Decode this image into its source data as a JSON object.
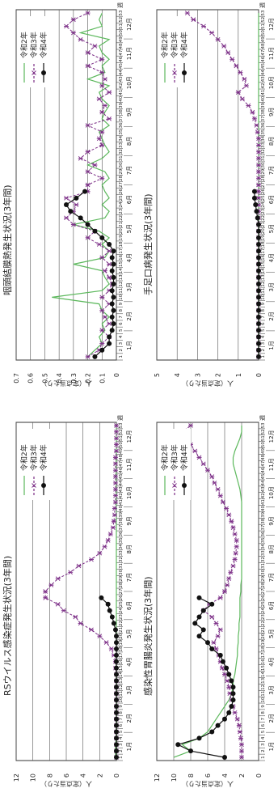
{
  "legend_labels": [
    "令和2年",
    "令和3年",
    "令和4年"
  ],
  "series_colors": [
    "#5cb85c",
    "#7b2d86",
    "#111111"
  ],
  "months": [
    "1月",
    "2月",
    "3月",
    "4月",
    "5月",
    "6月",
    "7月",
    "8月",
    "9月",
    "10月",
    "11月",
    "12月"
  ],
  "week_unit": "週",
  "ylabel": "人（定点当たり）",
  "chart_data": [
    {
      "type": "line",
      "title": "RSウイルス感染症発生状況(3年間)",
      "ylabel": "人（定点当たり）",
      "yticks": [
        0,
        2,
        4,
        6,
        8,
        10,
        12
      ],
      "ylim": [
        0,
        12
      ],
      "x": [
        1,
        2,
        3,
        4,
        5,
        6,
        7,
        8,
        9,
        10,
        11,
        12,
        13,
        14,
        15,
        16,
        17,
        18,
        19,
        20,
        21,
        22,
        23,
        24,
        25,
        26,
        27,
        28,
        29,
        30,
        31,
        32,
        33,
        34,
        35,
        36,
        37,
        38,
        39,
        40,
        41,
        42,
        43,
        44,
        45,
        46,
        47,
        48,
        49,
        50,
        51,
        52,
        53
      ],
      "series": [
        {
          "name": "令和2年",
          "values": [
            0.1,
            0.1,
            0.1,
            0,
            0,
            0,
            0,
            0,
            0,
            0,
            0,
            0,
            0,
            0,
            0,
            0,
            0,
            0,
            0,
            0,
            0,
            0,
            0,
            0,
            0,
            0,
            0,
            0,
            0,
            0,
            0,
            0,
            0,
            0,
            0,
            0,
            0,
            0,
            0,
            0,
            0,
            0,
            0,
            0,
            0,
            0,
            0,
            0,
            0,
            0,
            0,
            0,
            0
          ]
        },
        {
          "name": "令和3年",
          "values": [
            0,
            0,
            0,
            0,
            0,
            0,
            0,
            0,
            0,
            0,
            0,
            0,
            0,
            0,
            0.1,
            0.1,
            0.3,
            0.6,
            1.2,
            2,
            3,
            4.3,
            4.9,
            6.3,
            7,
            8.5,
            8.5,
            7.8,
            7,
            5.5,
            4.5,
            3,
            2,
            1.4,
            1,
            0.7,
            0.4,
            0.3,
            0.2,
            0.2,
            0.1,
            0.1,
            0.1,
            0.1,
            0.1,
            0.1,
            0.1,
            0.1,
            0,
            0,
            0,
            0,
            0
          ]
        },
        {
          "name": "令和4年",
          "values": [
            0,
            0,
            0,
            0,
            0,
            0,
            0,
            0,
            0,
            0,
            0,
            0,
            0,
            0,
            0,
            0,
            0,
            0,
            0,
            0,
            0.1,
            0.3,
            0.5,
            0.8,
            1,
            1.8,
            null,
            null,
            null,
            null,
            null,
            null,
            null,
            null,
            null,
            null,
            null,
            null,
            null,
            null,
            null,
            null,
            null,
            null,
            null,
            null,
            null,
            null,
            null,
            null,
            null,
            null,
            null
          ]
        }
      ]
    },
    {
      "type": "line",
      "title": "咽頭結膜熱発生状況(3年間)",
      "ylabel": "人（定点当たり）",
      "yticks": [
        0,
        0.1,
        0.2,
        0.3,
        0.4,
        0.5,
        0.6,
        0.7
      ],
      "ylim": [
        0,
        0.7
      ],
      "x": [
        1,
        2,
        3,
        4,
        5,
        6,
        7,
        8,
        9,
        10,
        11,
        12,
        13,
        14,
        15,
        16,
        17,
        18,
        19,
        20,
        21,
        22,
        23,
        24,
        25,
        26,
        27,
        28,
        29,
        30,
        31,
        32,
        33,
        34,
        35,
        36,
        37,
        38,
        39,
        40,
        41,
        42,
        43,
        44,
        45,
        46,
        47,
        48,
        49,
        50,
        51,
        52,
        53
      ],
      "series": [
        {
          "name": "令和2年",
          "values": [
            0.2,
            0.15,
            0.1,
            0.12,
            0.08,
            0.1,
            0.05,
            0.1,
            0.12,
            0.45,
            0.1,
            0.05,
            0.08,
            0.1,
            0.3,
            0.08,
            0.05,
            0.1,
            0.05,
            0.12,
            0.3,
            0.08,
            0.05,
            0.1,
            0.05,
            0.08,
            0.1,
            0.05,
            0.08,
            0.2,
            0.1,
            0.05,
            0.08,
            0.1,
            0.12,
            0.05,
            0.1,
            0.08,
            0.05,
            0.1,
            0.12,
            0.05,
            0.2,
            0.08,
            0.1,
            0.05,
            0.1,
            0.12,
            0.05,
            0.25,
            0.1,
            0.12,
            0.1
          ]
        },
        {
          "name": "令和3年",
          "values": [
            0.2,
            0.12,
            0.1,
            0.05,
            0.1,
            0.05,
            0.08,
            0.1,
            0.05,
            0.1,
            0.05,
            0.03,
            0.05,
            0.08,
            0.05,
            0.1,
            0.05,
            0.12,
            0.2,
            0.15,
            0.3,
            0.35,
            0.3,
            0.28,
            0.35,
            0.2,
            0.2,
            0.1,
            0.2,
            0.15,
            0.25,
            0.2,
            0.1,
            0.12,
            0.1,
            0.2,
            0.05,
            0.1,
            0.08,
            0.12,
            0.05,
            0.1,
            0.08,
            0.1,
            0.2,
            0.1,
            0.2,
            0.15,
            0.25,
            0.3,
            0.35,
            0.3,
            0.2
          ]
        },
        {
          "name": "令和4年",
          "values": [
            0.15,
            0.1,
            0.05,
            0.05,
            0.03,
            0.02,
            0.03,
            0.02,
            0.03,
            0.02,
            0.03,
            0.02,
            0.02,
            0.03,
            0.02,
            0.03,
            0.02,
            0.05,
            0.1,
            0.15,
            0.2,
            0.25,
            0.32,
            0.35,
            0.28,
            0.22,
            null,
            null,
            null,
            null,
            null,
            null,
            null,
            null,
            null,
            null,
            null,
            null,
            null,
            null,
            null,
            null,
            null,
            null,
            null,
            null,
            null,
            null,
            null,
            null,
            null,
            null,
            null
          ]
        }
      ]
    },
    {
      "type": "line",
      "title": "感染性胃腸炎発生状況(3年間)",
      "ylabel": "人（定点当たり）",
      "yticks": [
        0,
        2,
        4,
        6,
        8,
        10,
        12
      ],
      "ylim": [
        0,
        12
      ],
      "x": [
        1,
        2,
        3,
        4,
        5,
        6,
        7,
        8,
        9,
        10,
        11,
        12,
        13,
        14,
        15,
        16,
        17,
        18,
        19,
        20,
        21,
        22,
        23,
        24,
        25,
        26,
        27,
        28,
        29,
        30,
        31,
        32,
        33,
        34,
        35,
        36,
        37,
        38,
        39,
        40,
        41,
        42,
        43,
        44,
        45,
        46,
        47,
        48,
        49,
        50,
        51,
        52,
        53
      ],
      "series": [
        {
          "name": "令和2年",
          "values": [
            10,
            8,
            9,
            7,
            6,
            5.5,
            5,
            4.5,
            4,
            3.5,
            3.2,
            3,
            3,
            2.8,
            2.7,
            2.6,
            2.5,
            2.5,
            2.4,
            2.4,
            2.3,
            2.3,
            2.2,
            2.2,
            2.2,
            2.2,
            2.1,
            2.1,
            2,
            2,
            2,
            2,
            2,
            2,
            2,
            2,
            2,
            2,
            2,
            2,
            2,
            2.1,
            2.2,
            2.4,
            2.6,
            2.8,
            3,
            3,
            2.8,
            2.5,
            2.2,
            2,
            2
          ]
        },
        {
          "name": "令和3年",
          "values": [
            2,
            2,
            2,
            2.1,
            2.2,
            2.3,
            2.5,
            2.8,
            3,
            3.2,
            3.4,
            3.5,
            3.7,
            4,
            4.3,
            4.5,
            4.7,
            5,
            5.3,
            4.8,
            4.5,
            5,
            5.5,
            6.5,
            5.8,
            4.5,
            4,
            3.7,
            3.5,
            3.3,
            3,
            2.8,
            2.7,
            2.6,
            2.6,
            2.8,
            3,
            3.2,
            3.5,
            3.8,
            4.2,
            4.5,
            4.8,
            5.2,
            5.5,
            6,
            6.5,
            7,
            7.5,
            8,
            10,
            9,
            8
          ]
        },
        {
          "name": "令和4年",
          "values": [
            4,
            8,
            9.5,
            7,
            5.5,
            4.8,
            4,
            3.5,
            3.2,
            3,
            3,
            3,
            3.2,
            3.5,
            3.8,
            4.2,
            4.5,
            5.5,
            6,
            7,
            6.5,
            7.5,
            7,
            6.5,
            5.5,
            7,
            null,
            null,
            null,
            null,
            null,
            null,
            null,
            null,
            null,
            null,
            null,
            null,
            null,
            null,
            null,
            null,
            null,
            null,
            null,
            null,
            null,
            null,
            null,
            null,
            null,
            null,
            null
          ]
        }
      ]
    },
    {
      "type": "line",
      "title": "手足口病発生状況(3年間)",
      "ylabel": "人（定点当たり）",
      "yticks": [
        0,
        1,
        2,
        3,
        4,
        5
      ],
      "ylim": [
        0,
        5
      ],
      "x": [
        1,
        2,
        3,
        4,
        5,
        6,
        7,
        8,
        9,
        10,
        11,
        12,
        13,
        14,
        15,
        16,
        17,
        18,
        19,
        20,
        21,
        22,
        23,
        24,
        25,
        26,
        27,
        28,
        29,
        30,
        31,
        32,
        33,
        34,
        35,
        36,
        37,
        38,
        39,
        40,
        41,
        42,
        43,
        44,
        45,
        46,
        47,
        48,
        49,
        50,
        51,
        52,
        53
      ],
      "series": [
        {
          "name": "令和2年",
          "values": [
            0,
            0,
            0,
            0,
            0,
            0,
            0,
            0,
            0,
            0,
            0,
            0,
            0,
            0,
            0,
            0,
            0,
            0,
            0,
            0,
            0,
            0,
            0,
            0,
            0,
            0,
            0,
            0,
            0,
            0,
            0,
            0,
            0,
            0,
            0,
            0,
            0,
            0,
            0,
            0,
            0,
            0,
            0,
            0,
            0,
            0,
            0,
            0,
            0,
            0,
            0,
            0,
            0
          ]
        },
        {
          "name": "令和3年",
          "values": [
            0,
            0,
            0,
            0,
            0,
            0,
            0,
            0,
            0,
            0,
            0,
            0,
            0,
            0,
            0,
            0,
            0,
            0,
            0,
            0,
            0,
            0,
            0,
            0,
            0,
            0,
            0,
            0,
            0,
            0,
            0,
            0,
            0,
            0,
            0.05,
            0.1,
            0.2,
            0.3,
            0.5,
            0.8,
            1,
            0.6,
            0.7,
            0.9,
            1.1,
            1.3,
            1.5,
            1.7,
            2,
            2.3,
            2.7,
            3.2,
            3.5
          ]
        },
        {
          "name": "令和4年",
          "values": [
            0,
            0,
            0,
            0,
            0,
            0,
            0,
            0,
            0,
            0,
            0,
            0,
            0,
            0,
            0,
            0,
            0,
            0,
            0,
            0,
            0,
            0.05,
            0.1,
            0.15,
            0.2,
            0.2,
            null,
            null,
            null,
            null,
            null,
            null,
            null,
            null,
            null,
            null,
            null,
            null,
            null,
            null,
            null,
            null,
            null,
            null,
            null,
            null,
            null,
            null,
            null,
            null,
            null,
            null,
            null
          ]
        }
      ]
    }
  ]
}
